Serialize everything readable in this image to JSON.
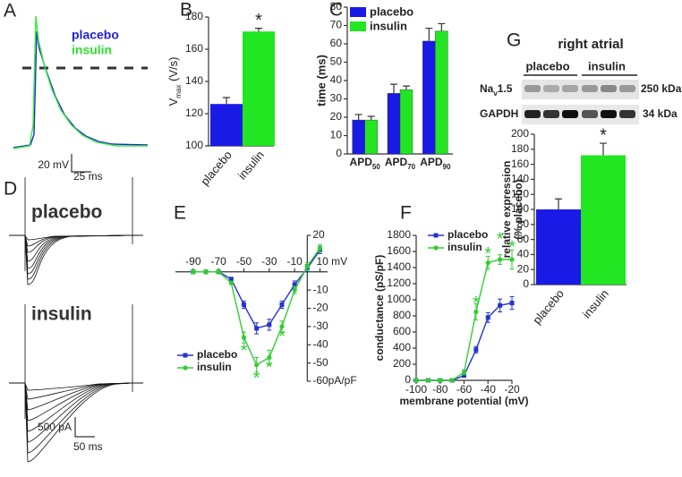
{
  "chart_data": [
    {
      "type": "bar",
      "panel_label": "B",
      "categories": [
        "placebo",
        "insulin"
      ],
      "values": [
        126,
        171
      ],
      "errors": [
        4,
        2
      ],
      "colors": [
        "#1a1ae6",
        "#22e622"
      ],
      "ylim": [
        100,
        180
      ],
      "yticks": [
        100,
        120,
        140,
        160,
        180
      ],
      "ylabel": [
        "V",
        "max",
        " (V/s)"
      ],
      "star": "*"
    },
    {
      "type": "grouped-bar",
      "panel_label": "C",
      "categories": [
        [
          "APD",
          "50"
        ],
        [
          "APD",
          "70"
        ],
        [
          "APD",
          "90"
        ]
      ],
      "series": [
        {
          "name": "placebo",
          "color": "#1a1ae6",
          "values": [
            18.5,
            33,
            61.5
          ],
          "errors": [
            3,
            5,
            7
          ]
        },
        {
          "name": "insulin",
          "color": "#22e622",
          "values": [
            18.5,
            35,
            67
          ],
          "errors": [
            2,
            2,
            4
          ]
        }
      ],
      "ylim": [
        0,
        80
      ],
      "yticks": [
        0,
        10,
        20,
        30,
        40,
        50,
        60,
        70,
        80
      ],
      "ylabel": "time (ms)"
    },
    {
      "type": "line",
      "panel_label": "E",
      "x": [
        -90,
        -80,
        -70,
        -60,
        -50,
        -40,
        -30,
        -20,
        -10,
        0,
        10
      ],
      "series": [
        {
          "name": "placebo",
          "color": "#2233cc",
          "values": [
            0,
            0,
            0,
            -4,
            -18,
            -31,
            -29,
            -18,
            -7,
            2,
            12
          ],
          "errors": [
            1,
            1,
            1,
            1,
            2,
            3,
            3,
            2,
            2,
            2,
            2
          ]
        },
        {
          "name": "insulin",
          "color": "#33cc33",
          "values": [
            0,
            0,
            0,
            -6,
            -36,
            -51,
            -47,
            -30,
            -10,
            3,
            13
          ],
          "errors": [
            1,
            1,
            1,
            1,
            3,
            4,
            4,
            3,
            2,
            2,
            2
          ]
        }
      ],
      "xlim": [
        -104,
        16
      ],
      "xticks": [
        -90,
        -70,
        -50,
        -30,
        -10,
        {
          "value": 10,
          "label": "10 mV"
        }
      ],
      "ylim": [
        -60,
        20
      ],
      "yticks": [
        20,
        -10,
        -20,
        -30,
        -40,
        -50,
        {
          "value": -60,
          "label": "-60pA/pF"
        }
      ],
      "annotations": [
        {
          "text": "*",
          "x": -50,
          "y": -44,
          "color": "#33cc33"
        },
        {
          "text": "*",
          "x": -40,
          "y": -59,
          "color": "#33cc33"
        },
        {
          "text": "*",
          "x": -30,
          "y": -53,
          "color": "#33cc33"
        },
        {
          "text": "*",
          "x": -20,
          "y": -36,
          "color": "#33cc33"
        }
      ]
    },
    {
      "type": "line",
      "panel_label": "F",
      "x": [
        -100,
        -90,
        -80,
        -70,
        -60,
        -50,
        -40,
        -30,
        -20
      ],
      "series": [
        {
          "name": "placebo",
          "color": "#2233cc",
          "values": [
            0,
            0,
            0,
            0,
            60,
            380,
            780,
            930,
            960
          ],
          "errors": [
            10,
            10,
            10,
            10,
            20,
            40,
            60,
            80,
            80
          ]
        },
        {
          "name": "insulin",
          "color": "#33cc33",
          "values": [
            0,
            0,
            0,
            0,
            100,
            850,
            1460,
            1500,
            1500
          ],
          "errors": [
            10,
            10,
            10,
            10,
            30,
            100,
            80,
            60,
            120
          ]
        }
      ],
      "xlim": [
        -100,
        -20
      ],
      "xticks": [
        -100,
        -80,
        -60,
        -40,
        -20
      ],
      "ylim": [
        0,
        1800
      ],
      "yticks": [
        0,
        200,
        400,
        600,
        800,
        1000,
        1200,
        1400,
        1600,
        1800
      ],
      "xlabel": "membrane potential (mV)",
      "ylabel": "conductance (pS/pF)",
      "annotations": [
        {
          "text": "*",
          "x": -50,
          "y": 950,
          "color": "#33cc33"
        },
        {
          "text": "*",
          "x": -40,
          "y": 1560,
          "color": "#33cc33"
        },
        {
          "text": "*",
          "x": -30,
          "y": 1740,
          "color": "#33cc33"
        },
        {
          "text": "*",
          "x": -20,
          "y": 1640,
          "color": "#33cc33"
        }
      ]
    },
    {
      "type": "bar",
      "categories": [
        "placebo",
        "insulin"
      ],
      "values": [
        100,
        172
      ],
      "errors": [
        14,
        16
      ],
      "colors": [
        "#1a1ae6",
        "#22e622"
      ],
      "ylim": [
        0,
        200
      ],
      "yticks": [
        0,
        20,
        40,
        60,
        80,
        100,
        120,
        140,
        160,
        180,
        200
      ],
      "ylabel_lines": [
        "relative expression",
        "(% placebo)"
      ],
      "star": "*"
    }
  ],
  "panel_a": {
    "label": "A",
    "legend": [
      "placebo",
      "insulin"
    ],
    "scale": [
      "20 mV",
      "25 ms"
    ]
  },
  "panel_d": {
    "label": "D",
    "titles": [
      "placebo",
      "insulin"
    ],
    "scale": [
      "500 pA",
      "50 ms"
    ]
  },
  "panel_g": {
    "label": "G",
    "title": "right atrial",
    "groups": [
      "placebo",
      "insulin"
    ],
    "rows": [
      [
        "Na",
        "v",
        "1.5"
      ],
      "GAPDH"
    ],
    "sizes": [
      "250 kDa",
      "34 kDa"
    ]
  }
}
